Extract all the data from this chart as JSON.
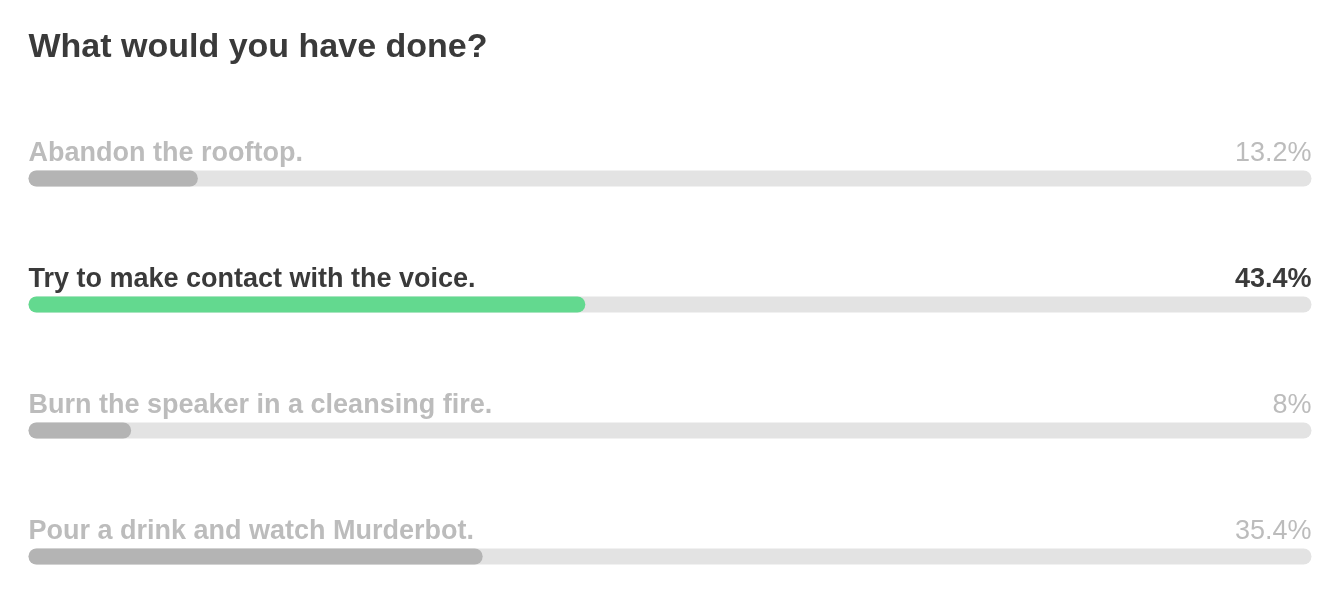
{
  "chart_data": {
    "type": "bar",
    "orientation": "horizontal",
    "title": "What would you have done?",
    "categories": [
      "Abandon the rooftop.",
      "Try to make contact with the voice.",
      "Burn the speaker in a cleansing fire.",
      "Pour a drink and watch Murderbot."
    ],
    "values": [
      13.2,
      43.4,
      8,
      35.4
    ],
    "value_labels": [
      "13.2%",
      "43.4%",
      "8%",
      "35.4%"
    ],
    "colors": [
      "#b4b4b4",
      "#63d98f",
      "#b4b4b4",
      "#b4b4b4"
    ],
    "xlim": [
      0,
      100
    ],
    "tick_labels": false
  }
}
